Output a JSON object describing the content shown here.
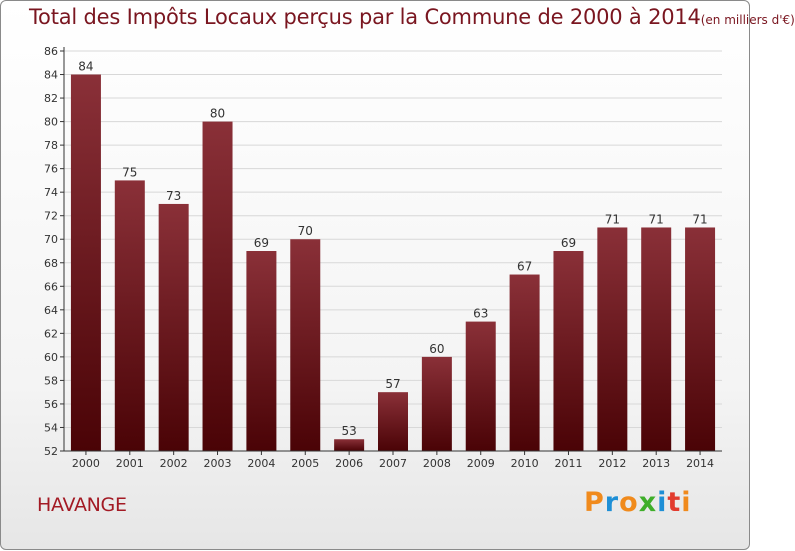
{
  "title": "Total des Impôts Locaux perçus par la Commune de 2000 à 2014",
  "title_unit": "(en milliers d'€)",
  "commune": "HAVANGE",
  "logo": {
    "letters": [
      "P",
      "r",
      "o",
      "x",
      "i",
      "t",
      "i"
    ],
    "colors": [
      "#f08a1c",
      "#1e8fd6",
      "#f08a1c",
      "#3fae2a",
      "#1e8fd6",
      "#e23b2e",
      "#f08a1c"
    ]
  },
  "colors": {
    "bar_top": "#8a3038",
    "bar_bottom": "#4a0306",
    "grid": "#d8d8d8",
    "axis": "#333333"
  },
  "chart_data": {
    "type": "bar",
    "title": "Total des Impôts Locaux perçus par la Commune de 2000 à 2014 (en milliers d'€)",
    "xlabel": "",
    "ylabel": "",
    "categories": [
      "2000",
      "2001",
      "2002",
      "2003",
      "2004",
      "2005",
      "2006",
      "2007",
      "2008",
      "2009",
      "2010",
      "2011",
      "2012",
      "2013",
      "2014"
    ],
    "values": [
      84,
      75,
      73,
      80,
      69,
      70,
      53,
      57,
      60,
      63,
      67,
      69,
      71,
      71,
      71
    ],
    "ylim": [
      52,
      86
    ],
    "yticks": [
      52,
      54,
      56,
      58,
      60,
      62,
      64,
      66,
      68,
      70,
      72,
      74,
      76,
      78,
      80,
      82,
      84,
      86
    ],
    "grid": true
  }
}
